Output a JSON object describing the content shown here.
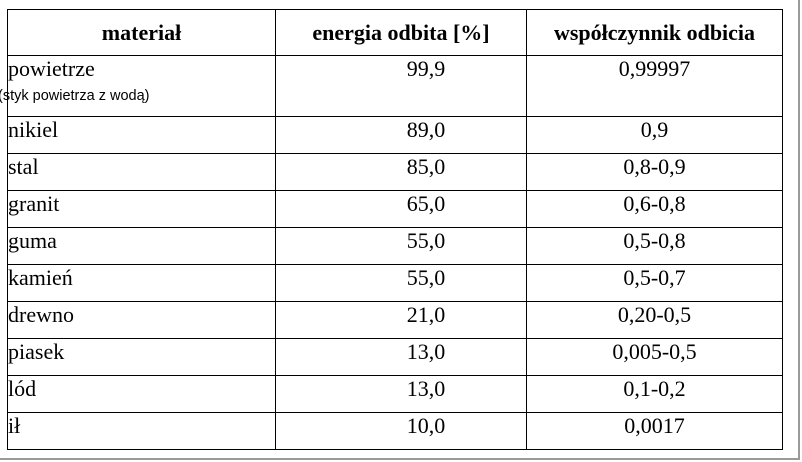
{
  "table": {
    "headers": [
      "materiał",
      "energia odbita [%]",
      "współczynnik odbicia"
    ],
    "rows": [
      {
        "material": "powietrze",
        "note": "(styk powietrza z wodą)",
        "energy": "99,9",
        "coefficient": "0,99997"
      },
      {
        "material": "nikiel",
        "energy": "89,0",
        "coefficient": "0,9"
      },
      {
        "material": "stal",
        "energy": "85,0",
        "coefficient": "0,8-0,9"
      },
      {
        "material": "granit",
        "energy": "65,0",
        "coefficient": "0,6-0,8"
      },
      {
        "material": "guma",
        "energy": "55,0",
        "coefficient": "0,5-0,8"
      },
      {
        "material": "kamień",
        "energy": "55,0",
        "coefficient": "0,5-0,7"
      },
      {
        "material": "drewno",
        "energy": "21,0",
        "coefficient": "0,20-0,5"
      },
      {
        "material": "piasek",
        "energy": "13,0",
        "coefficient": "0,005-0,5"
      },
      {
        "material": "lód",
        "energy": "13,0",
        "coefficient": "0,1-0,2"
      },
      {
        "material": "ił",
        "energy": "10,0",
        "coefficient": "0,0017"
      }
    ]
  }
}
